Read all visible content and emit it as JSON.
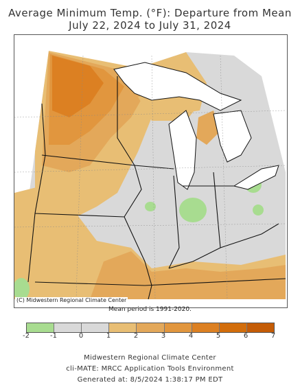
{
  "title_line1": "Average Minimum Temp. (°F): Departure from Mean",
  "title_line2": "July 22, 2024 to July 31, 2024",
  "credit": "(C) Midwestern Regional Climate Center",
  "mean_period": "Mean period is 1991-2020.",
  "legend": {
    "ticks": [
      "-2",
      "-1",
      "0",
      "1",
      "2",
      "3",
      "4",
      "5",
      "6",
      "7"
    ],
    "colors": [
      "#a8dc90",
      "#d9d9d9",
      "#d9d9d9",
      "#e8be74",
      "#e3a85a",
      "#e1963e",
      "#dc8022",
      "#d26d0b",
      "#c45c06"
    ]
  },
  "footer": {
    "line1": "Midwestern Regional Climate Center",
    "line2": "cli-MATE: MRCC Application Tools Environment",
    "line3": "Generated at: 8/5/2024 1:38:17 PM EDT"
  },
  "colors": {
    "water": "#ffffff",
    "neutral": "#d9d9d9",
    "cool": "#a8dc90",
    "warm1": "#e8be74",
    "warm2": "#e3a85a",
    "warm3": "#e1963e",
    "warm4": "#dc8022",
    "warm5": "#d26d0b",
    "border": "#111111"
  }
}
